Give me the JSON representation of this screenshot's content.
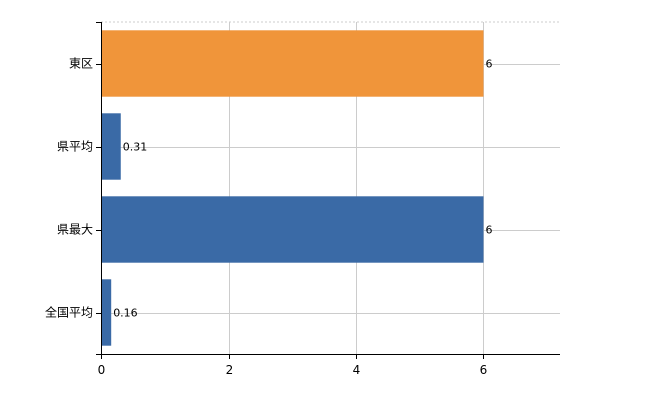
{
  "chart_data": {
    "type": "bar",
    "orientation": "horizontal",
    "categories": [
      "東区",
      "県平均",
      "県最大",
      "全国平均"
    ],
    "values": [
      6,
      0.31,
      6,
      0.16
    ],
    "data_labels": [
      "6",
      "0.31",
      "6",
      "0.16"
    ],
    "bar_colors": [
      "#f0953a",
      "#3a6aa6",
      "#3a6aa6",
      "#3a6aa6"
    ],
    "xlim": [
      0,
      7.2
    ],
    "x_ticks": [
      0,
      2,
      4,
      6
    ],
    "x_tick_labels": [
      "0",
      "2",
      "4",
      "6"
    ],
    "grid": true,
    "title": "",
    "xlabel": "",
    "ylabel": ""
  }
}
